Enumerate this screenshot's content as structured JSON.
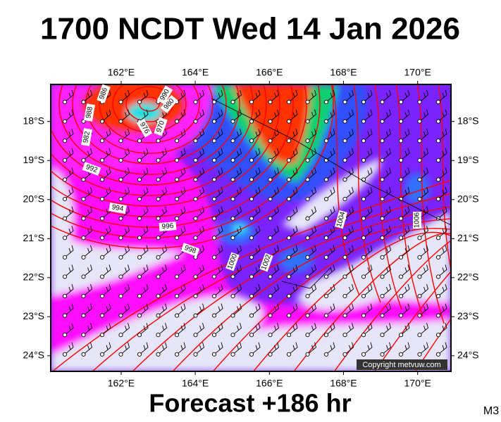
{
  "title": "1700 NCDT Wed 14 Jan 2026",
  "footer": "Forecast +186 hr",
  "model": "M3",
  "copyright": "Copyright metvuw.com",
  "map": {
    "lonlim": [
      160.1,
      170.9
    ],
    "latlim": [
      -17.05,
      -24.4
    ],
    "lon_ticks": [
      {
        "value": 162,
        "label": "162°E"
      },
      {
        "value": 164,
        "label": "164°E"
      },
      {
        "value": 166,
        "label": "166°E"
      },
      {
        "value": 168,
        "label": "168°E"
      },
      {
        "value": 170,
        "label": "170°E"
      }
    ],
    "lat_ticks": [
      {
        "value": -18,
        "label": "18°S"
      },
      {
        "value": -19,
        "label": "19°S"
      },
      {
        "value": -20,
        "label": "20°S"
      },
      {
        "value": -21,
        "label": "21°S"
      },
      {
        "value": -22,
        "label": "22°S"
      },
      {
        "value": -23,
        "label": "23°S"
      },
      {
        "value": -24,
        "label": "24°S"
      }
    ],
    "isobar_labels": [
      986,
      988,
      990,
      980,
      976,
      970,
      982,
      992,
      994,
      996,
      998,
      1000,
      1002,
      1004,
      1006
    ]
  }
}
